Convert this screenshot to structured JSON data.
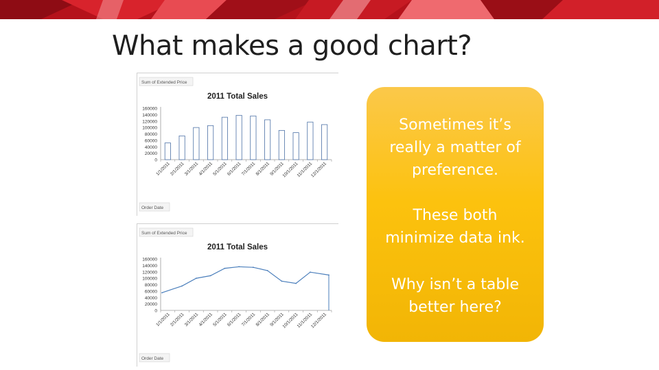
{
  "slide": {
    "title": "What makes a good chart?",
    "accent_color": "#d4202a"
  },
  "callout": {
    "background": "#fcc20e",
    "paragraph_1": [
      "Sometimes it’s",
      "really a matter of",
      "preference."
    ],
    "paragraph_2": [
      "These both",
      "minimize data ink."
    ],
    "paragraph_3": [
      "Why isn’t a table",
      "better here?"
    ]
  },
  "chart_data": [
    {
      "type": "bar",
      "title": "2011 Total Sales",
      "field_button": "Sum of Extended Price",
      "axis_button": "Order Date",
      "categories": [
        "1/1/2011",
        "2/1/2011",
        "3/1/2011",
        "4/1/2011",
        "5/1/2011",
        "6/1/2011",
        "7/1/2011",
        "8/1/2011",
        "9/1/2011",
        "10/1/2011",
        "11/1/2011",
        "12/1/2011"
      ],
      "values": [
        52000,
        74000,
        100000,
        106000,
        132000,
        138000,
        136000,
        124000,
        91000,
        84000,
        117000,
        109000
      ],
      "ylim": [
        0,
        160000
      ],
      "yticks": [
        "160000",
        "140000",
        "120000",
        "100000",
        "80000",
        "60000",
        "40000",
        "20000",
        "0"
      ],
      "bar_color": "#4a6fa5",
      "grid": false,
      "legend": "none"
    },
    {
      "type": "line",
      "title": "2011 Total Sales",
      "field_button": "Sum of Extended Price",
      "axis_button": "Order Date",
      "categories": [
        "1/1/2011",
        "2/1/2011",
        "3/1/2011",
        "4/1/2011",
        "5/1/2011",
        "6/1/2011",
        "7/1/2011",
        "8/1/2011",
        "9/1/2011",
        "10/1/2011",
        "11/1/2011",
        "12/1/2011"
      ],
      "values": [
        55000,
        76000,
        100000,
        108000,
        131000,
        136000,
        134000,
        124000,
        91000,
        84000,
        119000,
        110000
      ],
      "ylim": [
        0,
        160000
      ],
      "yticks": [
        "160000",
        "140000",
        "120000",
        "100000",
        "80000",
        "60000",
        "40000",
        "20000",
        "0"
      ],
      "line_color": "#4a7ebb",
      "grid": false,
      "legend": "none"
    }
  ]
}
